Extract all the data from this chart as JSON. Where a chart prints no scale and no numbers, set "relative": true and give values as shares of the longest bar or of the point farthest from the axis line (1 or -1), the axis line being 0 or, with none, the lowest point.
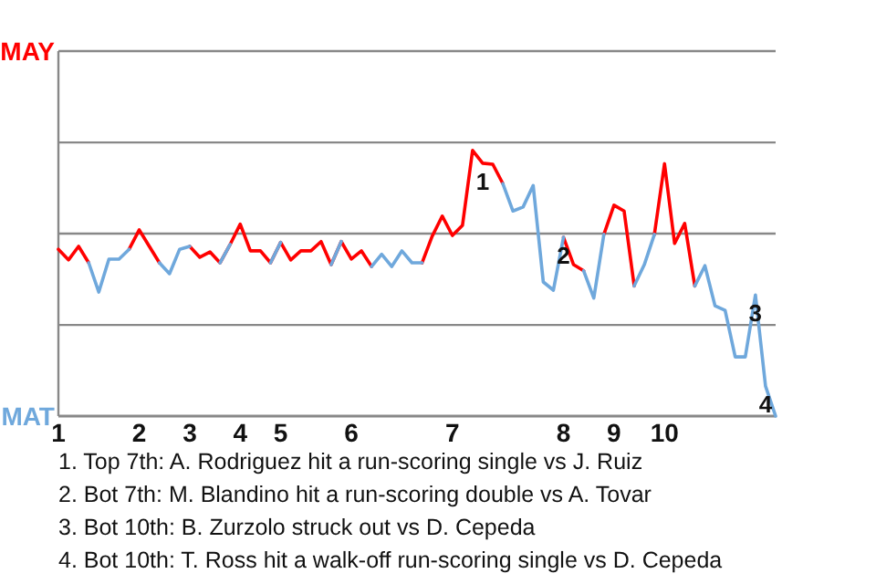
{
  "chart_data": {
    "type": "line",
    "relative": true,
    "categories": [
      "1",
      null,
      null,
      null,
      null,
      null,
      null,
      null,
      "2",
      null,
      null,
      null,
      null,
      "3",
      null,
      null,
      null,
      null,
      "4",
      null,
      null,
      null,
      "5",
      null,
      null,
      null,
      null,
      null,
      null,
      "6",
      null,
      null,
      null,
      null,
      null,
      null,
      null,
      null,
      null,
      "7",
      null,
      null,
      null,
      null,
      null,
      null,
      null,
      null,
      null,
      null,
      "8",
      null,
      null,
      null,
      null,
      "9",
      null,
      null,
      null,
      null,
      "10",
      null,
      null,
      null,
      null,
      null,
      null,
      null,
      null,
      null,
      null,
      null
    ],
    "series": [
      {
        "name": "MAY",
        "color": "#ff0000",
        "values": [
          0.628,
          0.588,
          0.639,
          0.577,
          null,
          null,
          null,
          0.628,
          0.701,
          0.639,
          0.577,
          null,
          null,
          0.639,
          0.598,
          0.618,
          0.577,
          0.646,
          0.723,
          0.622,
          0.622,
          0.577,
          0.654,
          0.588,
          0.622,
          0.622,
          0.657,
          0.57,
          0.657,
          0.591,
          0.622,
          0.563,
          null,
          null,
          null,
          null,
          0.577,
          0.677,
          0.753,
          0.68,
          0.718,
          1,
          0.952,
          0.948,
          0.875,
          null,
          null,
          null,
          null,
          null,
          0.673,
          0.57,
          0.547,
          null,
          0.684,
          0.794,
          0.772,
          0.49,
          null,
          0.684,
          0.95,
          0.65,
          0.725,
          0.49,
          null,
          null,
          null,
          null,
          null,
          null,
          null,
          null
        ]
      },
      {
        "name": "MAT",
        "color": "#6fa8dc",
        "values": [
          null,
          null,
          null,
          0.577,
          0.467,
          0.591,
          0.591,
          0.628,
          null,
          null,
          0.577,
          0.536,
          0.628,
          0.639,
          null,
          null,
          0.577,
          0.646,
          null,
          null,
          null,
          0.577,
          0.654,
          null,
          null,
          null,
          null,
          0.57,
          0.657,
          null,
          null,
          0.563,
          0.609,
          0.563,
          0.622,
          0.577,
          0.577,
          null,
          null,
          null,
          null,
          null,
          null,
          null,
          0.875,
          0.772,
          0.787,
          0.868,
          0.505,
          0.474,
          0.673,
          null,
          0.547,
          0.444,
          0.684,
          null,
          null,
          0.49,
          0.57,
          0.684,
          null,
          null,
          null,
          0.49,
          0.566,
          0.415,
          0.398,
          0.223,
          0.223,
          0.456,
          0.113,
          0
        ]
      }
    ],
    "ref_lines": [
      {
        "axis": "y",
        "value": 0.343,
        "color": "#888888"
      },
      {
        "axis": "y",
        "value": 0.687,
        "color": "#888888"
      },
      {
        "axis": "y",
        "value": 1.03,
        "color": "#888888"
      },
      {
        "axis": "y",
        "value": 1.374,
        "color": "#888888"
      }
    ],
    "annotations": [
      {
        "text": "1",
        "y": 0.952
      },
      {
        "text": "2",
        "y": 0.673
      },
      {
        "text": "3",
        "y": 0.456
      },
      {
        "text": "4",
        "y": 0.113
      },
      "1. Top 7th: A. Rodriguez hit a run-scoring single vs J. Ruiz",
      "2. Bot 7th: M. Blandino hit a run-scoring double vs A. Tovar",
      "3. Bot 10th: B. Zurzolo struck out vs D. Cepeda",
      "4. Bot 10th: T. Ross hit a walk-off run-scoring single vs D. Cepeda"
    ]
  }
}
